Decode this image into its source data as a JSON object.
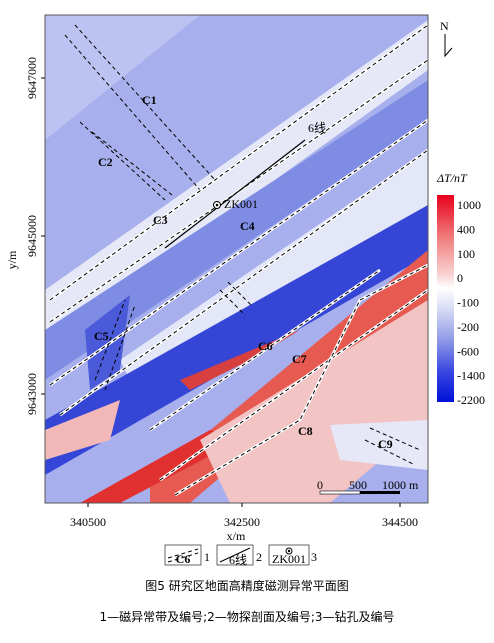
{
  "map": {
    "x_label": "x/m",
    "y_label": "y/m",
    "x_ticks": [
      "340500",
      "342500",
      "344500"
    ],
    "y_ticks": [
      "9647000",
      "9645000",
      "9643000"
    ],
    "anomaly_labels": [
      "C1",
      "C2",
      "C3",
      "C4",
      "C5",
      "C6",
      "C7",
      "C8",
      "C9"
    ],
    "profile": "6线",
    "borehole": "ZK001",
    "north": "N",
    "scale": [
      "0",
      "500",
      "1000 m"
    ],
    "colorbar": {
      "title": "ΔT/nT",
      "ticks": [
        "1000",
        "400",
        "100",
        "0",
        "-100",
        "-200",
        "-600",
        "-1400",
        "-2200"
      ]
    }
  },
  "legend": [
    {
      "symbol": "C6",
      "label": "1"
    },
    {
      "symbol": "6线",
      "label": "2"
    },
    {
      "symbol": "ZK001",
      "label": "3"
    }
  ],
  "caption": {
    "title": "图5  研究区地面高精度磁测异常平面图",
    "note": "1—磁异常带及编号;2—物探剖面及编号;3—钻孔及编号"
  }
}
